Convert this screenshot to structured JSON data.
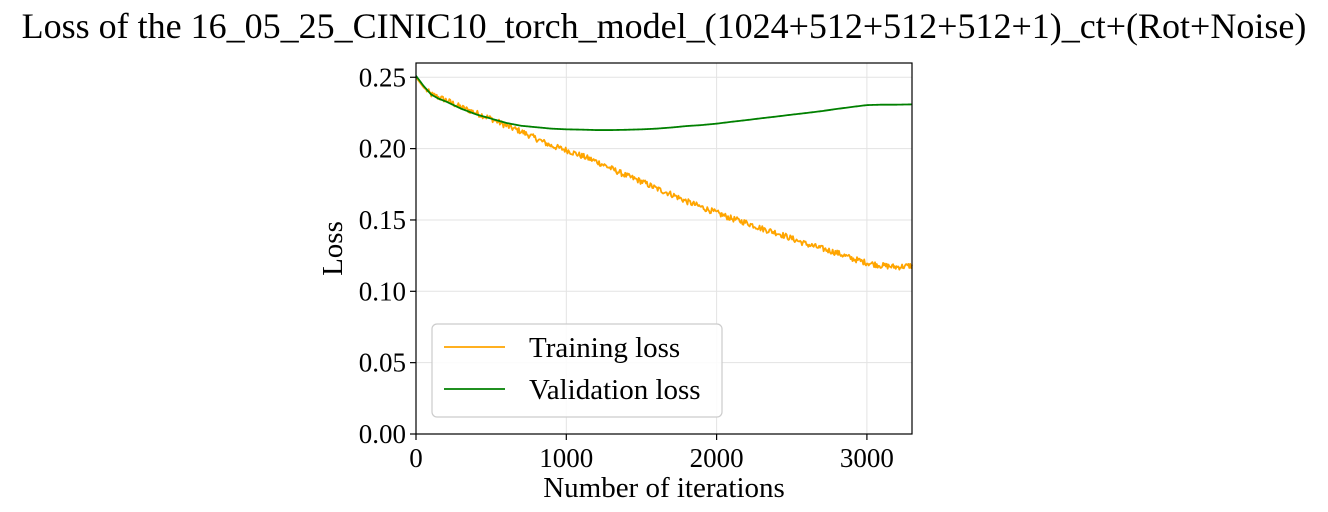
{
  "chart_data": {
    "type": "line",
    "title": "Loss of the 16_05_25_CINIC10_torch_model_(1024+512+512+512+1)_ct+(Rot+Noise)",
    "xlabel": "Number of iterations",
    "ylabel": "Loss",
    "xlim": [
      0,
      3300
    ],
    "ylim": [
      0.0,
      0.26
    ],
    "xticks": [
      0,
      1000,
      2000,
      3000
    ],
    "xtick_labels": [
      "0",
      "1000",
      "2000",
      "3000"
    ],
    "yticks": [
      0.0,
      0.05,
      0.1,
      0.15,
      0.2,
      0.25
    ],
    "ytick_labels": [
      "0.00",
      "0.05",
      "0.10",
      "0.15",
      "0.20",
      "0.25"
    ],
    "grid": true,
    "legend_position": "lower-left",
    "series": [
      {
        "name": "Training loss",
        "color": "#ffa500",
        "noisy": true,
        "x": [
          0,
          50,
          100,
          150,
          200,
          300,
          400,
          500,
          600,
          700,
          800,
          900,
          1000,
          1100,
          1200,
          1300,
          1400,
          1500,
          1600,
          1700,
          1800,
          1900,
          2000,
          2100,
          2200,
          2300,
          2400,
          2500,
          2600,
          2700,
          2800,
          2900,
          3000,
          3100,
          3200,
          3300
        ],
        "y": [
          0.25,
          0.243,
          0.238,
          0.236,
          0.234,
          0.229,
          0.225,
          0.221,
          0.216,
          0.212,
          0.207,
          0.202,
          0.199,
          0.195,
          0.191,
          0.186,
          0.181,
          0.177,
          0.172,
          0.168,
          0.163,
          0.159,
          0.155,
          0.151,
          0.148,
          0.144,
          0.141,
          0.137,
          0.133,
          0.13,
          0.127,
          0.123,
          0.12,
          0.118,
          0.117,
          0.118
        ]
      },
      {
        "name": "Validation loss",
        "color": "#008000",
        "noisy": false,
        "x": [
          0,
          50,
          100,
          150,
          200,
          300,
          400,
          500,
          600,
          700,
          800,
          900,
          1000,
          1100,
          1200,
          1300,
          1400,
          1500,
          1600,
          1700,
          1800,
          1900,
          2000,
          2100,
          2200,
          2300,
          2400,
          2500,
          2600,
          2700,
          2800,
          2900,
          3000,
          3100,
          3200,
          3300
        ],
        "y": [
          0.251,
          0.244,
          0.238,
          0.235,
          0.233,
          0.228,
          0.224,
          0.221,
          0.218,
          0.216,
          0.215,
          0.214,
          0.2135,
          0.2133,
          0.213,
          0.213,
          0.2132,
          0.2135,
          0.214,
          0.2148,
          0.2158,
          0.2165,
          0.2175,
          0.2188,
          0.22,
          0.2213,
          0.2225,
          0.2238,
          0.225,
          0.2263,
          0.2278,
          0.2292,
          0.2305,
          0.2308,
          0.2308,
          0.231
        ]
      }
    ]
  }
}
